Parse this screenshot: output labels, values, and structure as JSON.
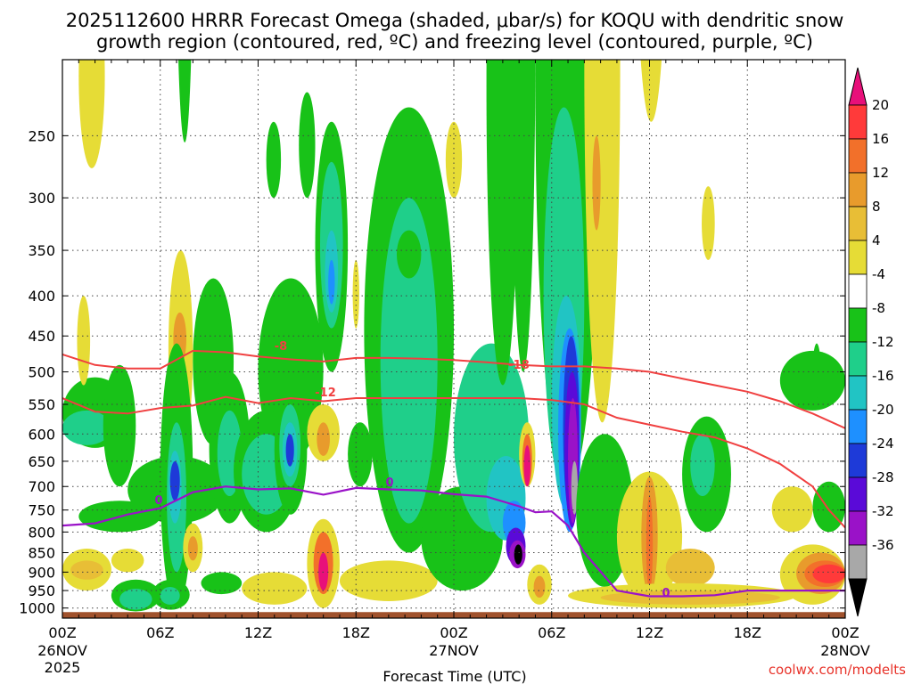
{
  "chart_data": {
    "type": "time-height cross section (shaded contours)",
    "title_line1": "2025112600 HRRR Forecast Omega (shaded, μbar/s) for KOQU with dendritic snow",
    "title_line2": "growth region (contoured, red, ºC) and freezing level (contoured, purple, ºC)",
    "xlabel": "Forecast Time (UTC)",
    "x_hours": [
      0,
      48
    ],
    "x_ticks": [
      {
        "h": 0,
        "label": "00Z",
        "sub1": "26NOV",
        "sub2": "2025"
      },
      {
        "h": 6,
        "label": "06Z"
      },
      {
        "h": 12,
        "label": "12Z"
      },
      {
        "h": 18,
        "label": "18Z"
      },
      {
        "h": 24,
        "label": "00Z",
        "sub1": "27NOV"
      },
      {
        "h": 30,
        "label": "06Z"
      },
      {
        "h": 36,
        "label": "12Z"
      },
      {
        "h": 42,
        "label": "18Z"
      },
      {
        "h": 48,
        "label": "00Z",
        "sub1": "28NOV"
      }
    ],
    "y_axis": "pressure (hPa), log scale",
    "ylim": [
      1030,
      200
    ],
    "y_ticks": [
      250,
      300,
      350,
      400,
      450,
      500,
      550,
      600,
      650,
      700,
      750,
      800,
      850,
      900,
      950,
      1000
    ],
    "terrain_top_hpa": 1012,
    "colorbar": {
      "labels": [
        "20",
        "16",
        "12",
        "8",
        "4",
        "-4",
        "-8",
        "-12",
        "-16",
        "-20",
        "-24",
        "-28",
        "-32",
        "-36"
      ],
      "colors": [
        "#ff3a3a",
        "#f2702a",
        "#e89b2c",
        "#e8be36",
        "#e6dc36",
        "#ffffff",
        "#18c218",
        "#1fcf8a",
        "#21c4c4",
        "#1e90ff",
        "#1e3ad8",
        "#5a0ad8",
        "#9a12c8",
        "#a8a8a8"
      ],
      "top_arrow": "#e8107a",
      "bottom_arrow": "#000000"
    },
    "isotherm_labels": {
      "dgz_minus8": "-8",
      "dgz_minus12": "-12",
      "dgz_minus18": "-18",
      "freezing_level": "0"
    },
    "dgz_minus8_line": {
      "hours": [
        0,
        2,
        4,
        6,
        8,
        10,
        12,
        14,
        16,
        18,
        20,
        22,
        24,
        26,
        28,
        30,
        32,
        34,
        36,
        38,
        40,
        42,
        44,
        46,
        48
      ],
      "hpa": [
        475,
        490,
        495,
        495,
        470,
        472,
        478,
        482,
        485,
        480,
        480,
        481,
        483,
        486,
        490,
        492,
        492,
        495,
        500,
        510,
        520,
        530,
        545,
        565,
        590
      ]
    },
    "dgz_minus12_line": {
      "hours": [
        0,
        2,
        4,
        6,
        8,
        10,
        12,
        14,
        16,
        18,
        20,
        22,
        24,
        26,
        28,
        30,
        32,
        34,
        36,
        38,
        40,
        42,
        44,
        46,
        47,
        48
      ],
      "hpa": [
        540,
        562,
        565,
        556,
        552,
        538,
        548,
        540,
        545,
        540,
        540,
        540,
        540,
        540,
        540,
        543,
        550,
        572,
        584,
        596,
        606,
        626,
        655,
        700,
        750,
        790
      ]
    },
    "freezing_level_line": {
      "hours": [
        0,
        2,
        4,
        6,
        8,
        10,
        12,
        14,
        16,
        18,
        20,
        22,
        24,
        26,
        28,
        29,
        30,
        31,
        32,
        34,
        36,
        38,
        40,
        42,
        44,
        46,
        48
      ],
      "hpa": [
        785,
        780,
        760,
        746,
        712,
        700,
        706,
        704,
        717,
        703,
        706,
        708,
        716,
        721,
        742,
        755,
        753,
        785,
        850,
        950,
        966,
        966,
        963,
        950,
        950,
        950,
        950
      ]
    },
    "source_label": "coolwx.com/modelts"
  }
}
